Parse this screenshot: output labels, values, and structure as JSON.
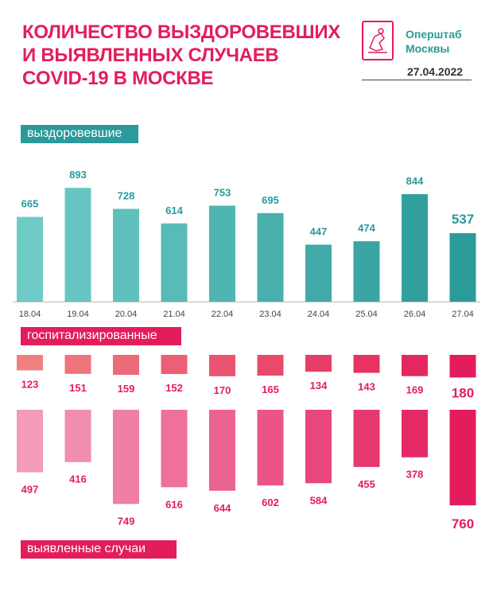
{
  "header": {
    "title_lines": [
      "КОЛИЧЕСТВО ВЫЗДОРОВЕВШИХ",
      "И ВЫЯВЛЕННЫХ СЛУЧАЕВ",
      "COVID-19 В МОСКВЕ"
    ],
    "org_lines": [
      "Оперштаб",
      "Москвы"
    ],
    "date": "27.04.2022"
  },
  "labels": {
    "recovered": "выздоровевшие",
    "hospitalized": "госпитализированные",
    "detected": "выявленные случаи"
  },
  "colors": {
    "teal": "#2a9a9a",
    "pink": "#e31d5b",
    "axis": "#bbbbbb"
  },
  "chart_data": {
    "type": "bar",
    "title": "Количество выздоровевших и выявленных случаев COVID-19 в Москве",
    "categories": [
      "18.04",
      "19.04",
      "20.04",
      "21.04",
      "22.04",
      "23.04",
      "24.04",
      "25.04",
      "26.04",
      "27.04"
    ],
    "series": [
      {
        "name": "выздоровевшие",
        "values": [
          665,
          893,
          728,
          614,
          753,
          695,
          447,
          474,
          844,
          537
        ]
      },
      {
        "name": "госпитализированные",
        "values": [
          123,
          151,
          159,
          152,
          170,
          165,
          134,
          143,
          169,
          180
        ]
      },
      {
        "name": "выявленные случаи",
        "values": [
          497,
          416,
          749,
          616,
          644,
          602,
          584,
          455,
          378,
          760
        ]
      }
    ]
  }
}
